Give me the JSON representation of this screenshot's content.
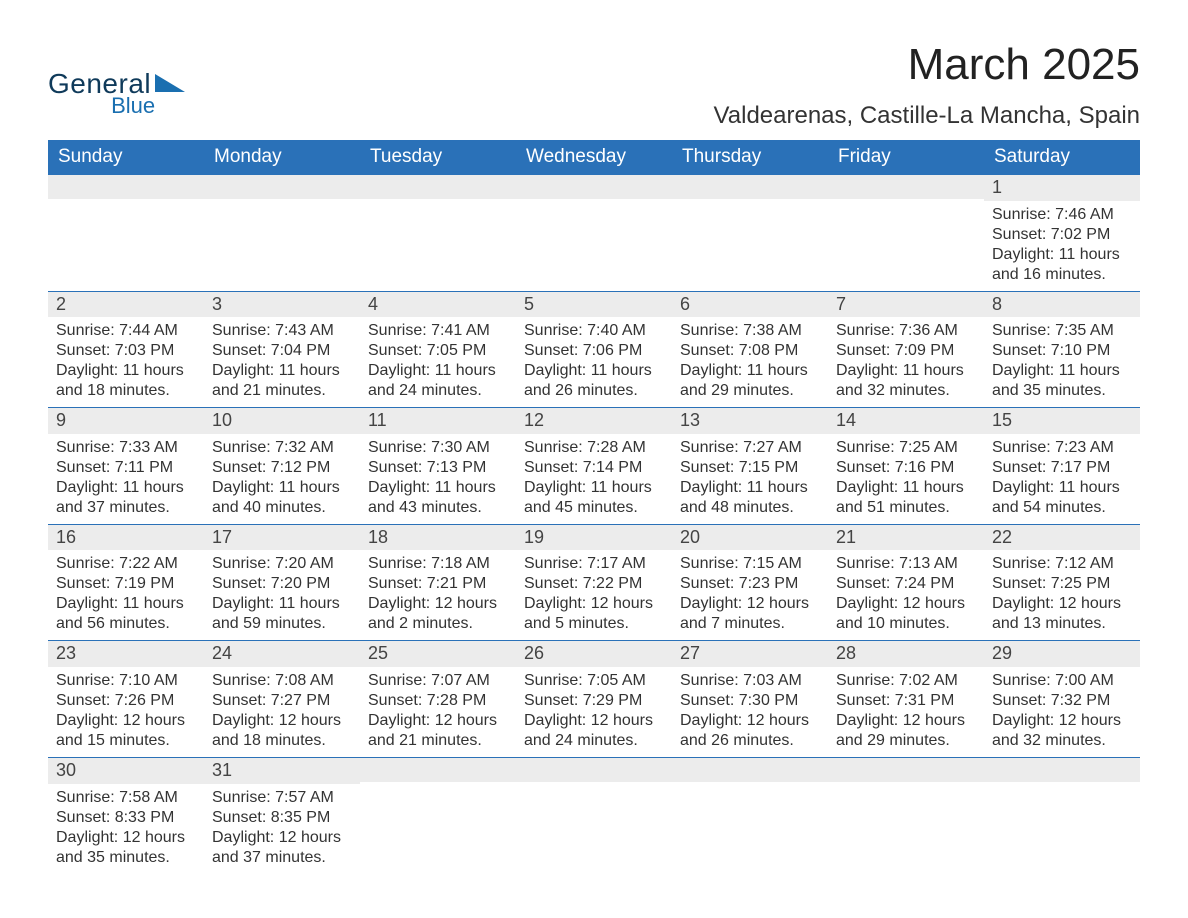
{
  "brand": {
    "word1": "General",
    "word2": "Blue",
    "icon_color": "#1a6fb0",
    "word1_color": "#0f3a5a",
    "word2_color": "#1a6fb0"
  },
  "title": "March 2025",
  "location": "Valdearenas, Castille-La Mancha, Spain",
  "colors": {
    "header_bg": "#2a71b8",
    "header_text": "#ffffff",
    "row_divider": "#2a71b8",
    "daynum_bg": "#ececec",
    "body_text": "#333333",
    "page_bg": "#ffffff"
  },
  "font": {
    "family": "Arial",
    "title_size_pt": 33,
    "location_size_pt": 18,
    "header_size_pt": 14,
    "daynum_size_pt": 14,
    "body_size_pt": 12
  },
  "weekday_headers": [
    "Sunday",
    "Monday",
    "Tuesday",
    "Wednesday",
    "Thursday",
    "Friday",
    "Saturday"
  ],
  "weeks": [
    {
      "days": [
        null,
        null,
        null,
        null,
        null,
        null,
        {
          "n": "1",
          "sunrise": "Sunrise: 7:46 AM",
          "sunset": "Sunset: 7:02 PM",
          "day1": "Daylight: 11 hours",
          "day2": "and 16 minutes."
        }
      ]
    },
    {
      "days": [
        {
          "n": "2",
          "sunrise": "Sunrise: 7:44 AM",
          "sunset": "Sunset: 7:03 PM",
          "day1": "Daylight: 11 hours",
          "day2": "and 18 minutes."
        },
        {
          "n": "3",
          "sunrise": "Sunrise: 7:43 AM",
          "sunset": "Sunset: 7:04 PM",
          "day1": "Daylight: 11 hours",
          "day2": "and 21 minutes."
        },
        {
          "n": "4",
          "sunrise": "Sunrise: 7:41 AM",
          "sunset": "Sunset: 7:05 PM",
          "day1": "Daylight: 11 hours",
          "day2": "and 24 minutes."
        },
        {
          "n": "5",
          "sunrise": "Sunrise: 7:40 AM",
          "sunset": "Sunset: 7:06 PM",
          "day1": "Daylight: 11 hours",
          "day2": "and 26 minutes."
        },
        {
          "n": "6",
          "sunrise": "Sunrise: 7:38 AM",
          "sunset": "Sunset: 7:08 PM",
          "day1": "Daylight: 11 hours",
          "day2": "and 29 minutes."
        },
        {
          "n": "7",
          "sunrise": "Sunrise: 7:36 AM",
          "sunset": "Sunset: 7:09 PM",
          "day1": "Daylight: 11 hours",
          "day2": "and 32 minutes."
        },
        {
          "n": "8",
          "sunrise": "Sunrise: 7:35 AM",
          "sunset": "Sunset: 7:10 PM",
          "day1": "Daylight: 11 hours",
          "day2": "and 35 minutes."
        }
      ]
    },
    {
      "days": [
        {
          "n": "9",
          "sunrise": "Sunrise: 7:33 AM",
          "sunset": "Sunset: 7:11 PM",
          "day1": "Daylight: 11 hours",
          "day2": "and 37 minutes."
        },
        {
          "n": "10",
          "sunrise": "Sunrise: 7:32 AM",
          "sunset": "Sunset: 7:12 PM",
          "day1": "Daylight: 11 hours",
          "day2": "and 40 minutes."
        },
        {
          "n": "11",
          "sunrise": "Sunrise: 7:30 AM",
          "sunset": "Sunset: 7:13 PM",
          "day1": "Daylight: 11 hours",
          "day2": "and 43 minutes."
        },
        {
          "n": "12",
          "sunrise": "Sunrise: 7:28 AM",
          "sunset": "Sunset: 7:14 PM",
          "day1": "Daylight: 11 hours",
          "day2": "and 45 minutes."
        },
        {
          "n": "13",
          "sunrise": "Sunrise: 7:27 AM",
          "sunset": "Sunset: 7:15 PM",
          "day1": "Daylight: 11 hours",
          "day2": "and 48 minutes."
        },
        {
          "n": "14",
          "sunrise": "Sunrise: 7:25 AM",
          "sunset": "Sunset: 7:16 PM",
          "day1": "Daylight: 11 hours",
          "day2": "and 51 minutes."
        },
        {
          "n": "15",
          "sunrise": "Sunrise: 7:23 AM",
          "sunset": "Sunset: 7:17 PM",
          "day1": "Daylight: 11 hours",
          "day2": "and 54 minutes."
        }
      ]
    },
    {
      "days": [
        {
          "n": "16",
          "sunrise": "Sunrise: 7:22 AM",
          "sunset": "Sunset: 7:19 PM",
          "day1": "Daylight: 11 hours",
          "day2": "and 56 minutes."
        },
        {
          "n": "17",
          "sunrise": "Sunrise: 7:20 AM",
          "sunset": "Sunset: 7:20 PM",
          "day1": "Daylight: 11 hours",
          "day2": "and 59 minutes."
        },
        {
          "n": "18",
          "sunrise": "Sunrise: 7:18 AM",
          "sunset": "Sunset: 7:21 PM",
          "day1": "Daylight: 12 hours",
          "day2": "and 2 minutes."
        },
        {
          "n": "19",
          "sunrise": "Sunrise: 7:17 AM",
          "sunset": "Sunset: 7:22 PM",
          "day1": "Daylight: 12 hours",
          "day2": "and 5 minutes."
        },
        {
          "n": "20",
          "sunrise": "Sunrise: 7:15 AM",
          "sunset": "Sunset: 7:23 PM",
          "day1": "Daylight: 12 hours",
          "day2": "and 7 minutes."
        },
        {
          "n": "21",
          "sunrise": "Sunrise: 7:13 AM",
          "sunset": "Sunset: 7:24 PM",
          "day1": "Daylight: 12 hours",
          "day2": "and 10 minutes."
        },
        {
          "n": "22",
          "sunrise": "Sunrise: 7:12 AM",
          "sunset": "Sunset: 7:25 PM",
          "day1": "Daylight: 12 hours",
          "day2": "and 13 minutes."
        }
      ]
    },
    {
      "days": [
        {
          "n": "23",
          "sunrise": "Sunrise: 7:10 AM",
          "sunset": "Sunset: 7:26 PM",
          "day1": "Daylight: 12 hours",
          "day2": "and 15 minutes."
        },
        {
          "n": "24",
          "sunrise": "Sunrise: 7:08 AM",
          "sunset": "Sunset: 7:27 PM",
          "day1": "Daylight: 12 hours",
          "day2": "and 18 minutes."
        },
        {
          "n": "25",
          "sunrise": "Sunrise: 7:07 AM",
          "sunset": "Sunset: 7:28 PM",
          "day1": "Daylight: 12 hours",
          "day2": "and 21 minutes."
        },
        {
          "n": "26",
          "sunrise": "Sunrise: 7:05 AM",
          "sunset": "Sunset: 7:29 PM",
          "day1": "Daylight: 12 hours",
          "day2": "and 24 minutes."
        },
        {
          "n": "27",
          "sunrise": "Sunrise: 7:03 AM",
          "sunset": "Sunset: 7:30 PM",
          "day1": "Daylight: 12 hours",
          "day2": "and 26 minutes."
        },
        {
          "n": "28",
          "sunrise": "Sunrise: 7:02 AM",
          "sunset": "Sunset: 7:31 PM",
          "day1": "Daylight: 12 hours",
          "day2": "and 29 minutes."
        },
        {
          "n": "29",
          "sunrise": "Sunrise: 7:00 AM",
          "sunset": "Sunset: 7:32 PM",
          "day1": "Daylight: 12 hours",
          "day2": "and 32 minutes."
        }
      ]
    },
    {
      "days": [
        {
          "n": "30",
          "sunrise": "Sunrise: 7:58 AM",
          "sunset": "Sunset: 8:33 PM",
          "day1": "Daylight: 12 hours",
          "day2": "and 35 minutes."
        },
        {
          "n": "31",
          "sunrise": "Sunrise: 7:57 AM",
          "sunset": "Sunset: 8:35 PM",
          "day1": "Daylight: 12 hours",
          "day2": "and 37 minutes."
        },
        null,
        null,
        null,
        null,
        null
      ]
    }
  ]
}
